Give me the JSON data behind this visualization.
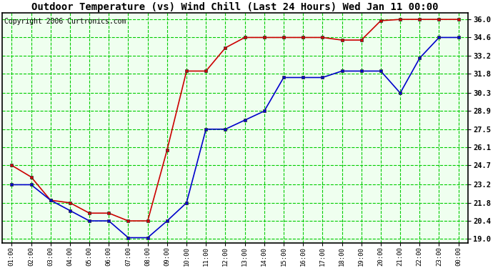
{
  "title": "Outdoor Temperature (vs) Wind Chill (Last 24 Hours) Wed Jan 11 00:00",
  "copyright": "Copyright 2006 Curtronics.com",
  "x_labels": [
    "01:00",
    "02:00",
    "03:00",
    "04:00",
    "05:00",
    "06:00",
    "07:00",
    "08:00",
    "09:00",
    "10:00",
    "11:00",
    "12:00",
    "13:00",
    "14:00",
    "15:00",
    "16:00",
    "17:00",
    "18:00",
    "19:00",
    "20:00",
    "21:00",
    "22:00",
    "23:00",
    "00:00"
  ],
  "temp_red": [
    24.7,
    23.8,
    22.0,
    21.8,
    21.0,
    21.0,
    20.4,
    20.4,
    25.9,
    32.0,
    32.0,
    33.8,
    34.6,
    34.6,
    34.6,
    34.6,
    34.6,
    34.4,
    34.4,
    35.9,
    36.0,
    36.0,
    36.0,
    36.0
  ],
  "temp_blue": [
    23.2,
    23.2,
    22.0,
    21.2,
    20.4,
    20.4,
    19.1,
    19.1,
    20.4,
    21.8,
    27.5,
    27.5,
    28.2,
    28.9,
    31.5,
    31.5,
    31.5,
    32.0,
    32.0,
    32.0,
    30.3,
    33.0,
    34.6,
    34.6
  ],
  "y_ticks": [
    19.0,
    20.4,
    21.8,
    23.2,
    24.7,
    26.1,
    27.5,
    28.9,
    30.3,
    31.8,
    33.2,
    34.6,
    36.0
  ],
  "y_min": 18.7,
  "y_max": 36.5,
  "bg_color": "#ffffff",
  "plot_bg": "#efffef",
  "grid_color": "#00cc00",
  "red_color": "#cc0000",
  "blue_color": "#0000cc",
  "title_fontsize": 10,
  "copyright_fontsize": 7
}
